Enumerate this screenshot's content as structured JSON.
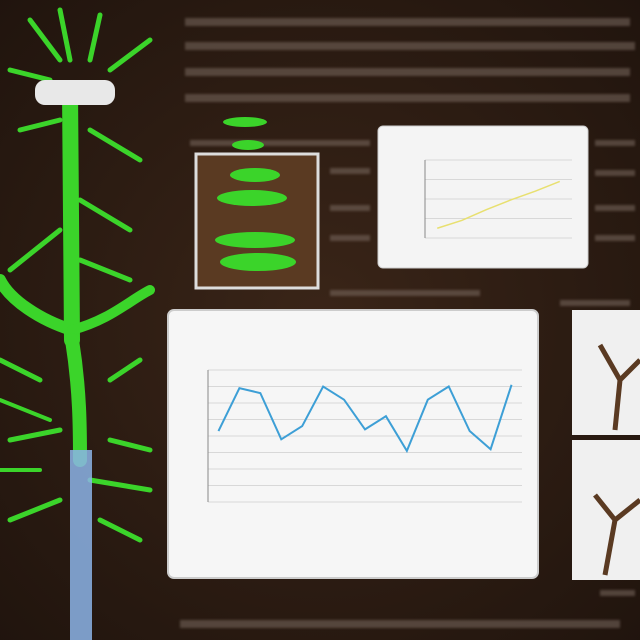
{
  "chart_data": [
    {
      "type": "line",
      "color": "#3d9fd6",
      "values": [
        4.3,
        6.9,
        6.6,
        3.8,
        4.6,
        7.0,
        6.2,
        4.4,
        5.2,
        3.1,
        6.2,
        7.0,
        4.3,
        3.2,
        7.1
      ],
      "ylim": [
        0,
        8
      ],
      "yticks": [
        0,
        1,
        2,
        3,
        4,
        5,
        6,
        7,
        8
      ],
      "grid": true
    },
    {
      "type": "line",
      "color": "#e8e070",
      "values": [
        1.0,
        1.8,
        2.9,
        3.9,
        4.8,
        5.8
      ],
      "ylim": [
        0,
        8
      ],
      "yticks": [
        0,
        2,
        4,
        6,
        8
      ],
      "grid": true
    }
  ]
}
